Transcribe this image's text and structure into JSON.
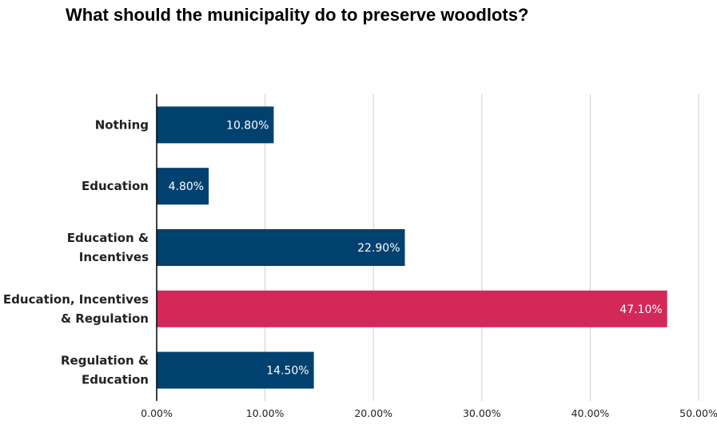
{
  "chart_data": {
    "type": "bar",
    "orientation": "horizontal",
    "title": "What should the municipality do to preserve woodlots?",
    "categories": [
      [
        "Nothing"
      ],
      [
        "Education"
      ],
      [
        "Education &",
        "Incentives"
      ],
      [
        "Education, Incentives",
        "& Regulation"
      ],
      [
        "Regulation &",
        "Education"
      ]
    ],
    "values": [
      10.8,
      4.8,
      22.9,
      47.1,
      14.5
    ],
    "data_labels": [
      "10.80%",
      "4.80%",
      "22.90%",
      "47.10%",
      "14.50%"
    ],
    "x_ticks": [
      0,
      10,
      20,
      30,
      40,
      50
    ],
    "x_tick_labels": [
      "0.00%",
      "10.00%",
      "20.00%",
      "30.00%",
      "40.00%",
      "50.00%"
    ],
    "xlim": [
      0,
      50
    ],
    "grid": "vertical",
    "legend": "none",
    "bar_colors": [
      "#00416f",
      "#00416f",
      "#00416f",
      "#d42859",
      "#00416f"
    ],
    "grid_color": "#cccccc",
    "axis_color": "#000000"
  }
}
